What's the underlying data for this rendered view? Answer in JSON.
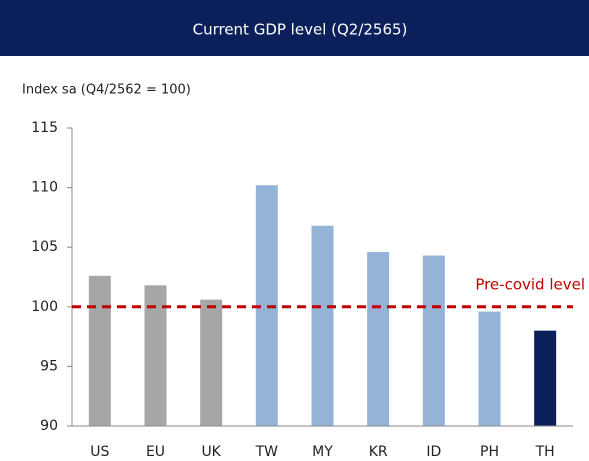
{
  "chart_data": {
    "type": "bar",
    "title": "Current GDP level (Q2/2565)",
    "y_label": "Index sa (Q4/2562 = 100)",
    "categories": [
      "US",
      "EU",
      "UK",
      "TW",
      "MY",
      "KR",
      "ID",
      "PH",
      "TH"
    ],
    "values": [
      102.6,
      101.8,
      100.6,
      110.2,
      106.8,
      104.6,
      104.3,
      99.6,
      98.0
    ],
    "colors": [
      "#a6a6a6",
      "#a6a6a6",
      "#a6a6a6",
      "#95b3d7",
      "#95b3d7",
      "#95b3d7",
      "#95b3d7",
      "#95b3d7",
      "#0b1f5b"
    ],
    "ylim": [
      90,
      115
    ],
    "yticks": [
      90,
      95,
      100,
      105,
      110,
      115
    ],
    "grid": false,
    "reference_line": {
      "value": 100,
      "label": "Pre-covid level",
      "color": "#c00000"
    }
  }
}
